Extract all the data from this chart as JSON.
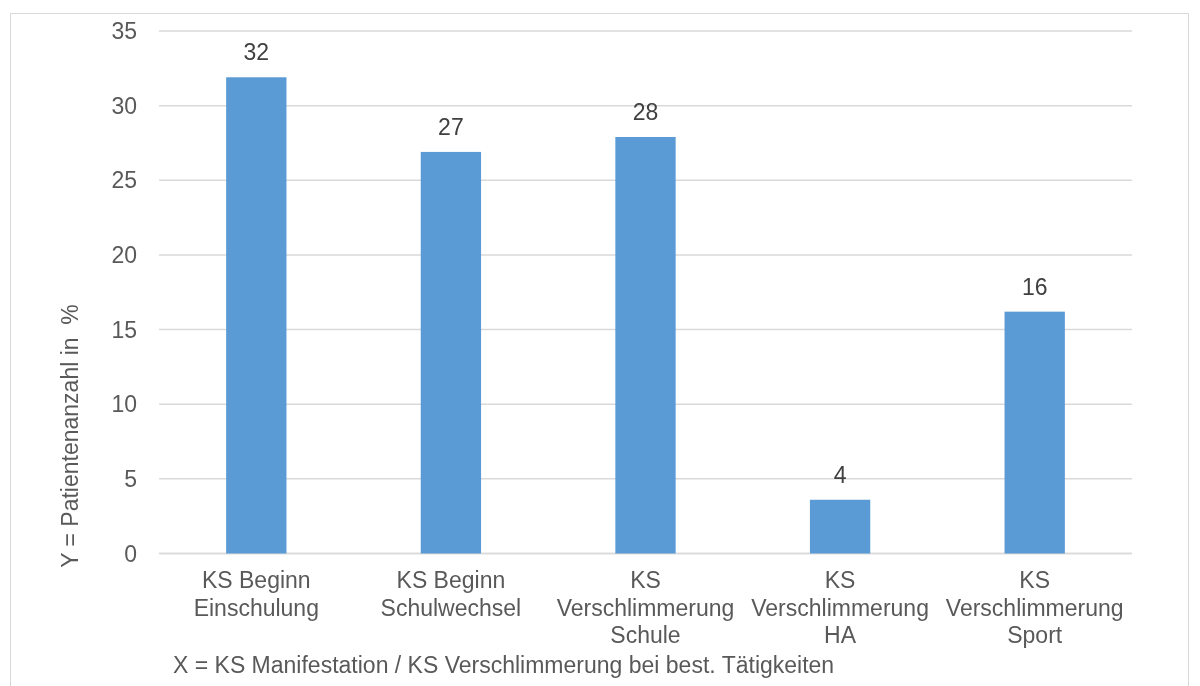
{
  "chart_data": {
    "type": "bar",
    "categories": [
      "KS Beginn Einschulung",
      "KS Beginn Schulwechsel",
      "KS Verschlimmerung Schule",
      "KS Verschlimmerung HA",
      "KS Verschlimmerung Sport"
    ],
    "values": [
      31.9,
      26.9,
      27.9,
      3.6,
      16.2
    ],
    "value_labels": [
      "32",
      "27",
      "28",
      "4",
      "16"
    ],
    "color": "#5b9bd5",
    "xlabel": "X = KS Manifestation / KS Verschlimmerung bei best. Tätigkeiten",
    "ylabel": "Y = Patientenanzahl in  %",
    "ylim": [
      0,
      35
    ],
    "yticks": [
      0,
      5,
      10,
      15,
      20,
      25,
      30,
      35
    ],
    "grid": "y"
  }
}
